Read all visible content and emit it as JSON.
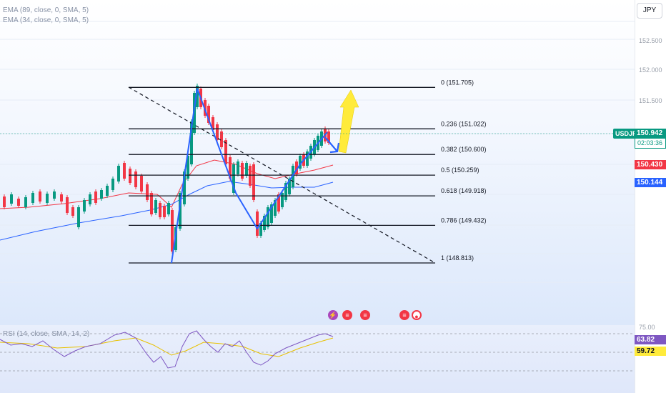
{
  "indicators": {
    "ema_slow": "EMA (89, close, 0, SMA, 5)",
    "ema_fast": "EMA (34, close, 0, SMA, 5)",
    "rsi": "RSI (14, close, SMA, 14, 2)"
  },
  "axis": {
    "currency": "JPY",
    "ticks": [
      "152.500",
      "152.000",
      "151.500"
    ],
    "rsi_ticks": [
      "75.00"
    ]
  },
  "symbol": {
    "name": "USDJPY",
    "last_price": "150.942",
    "countdown": "02:03:36",
    "last_color": "#089981"
  },
  "price_tags": {
    "ema_fast_value": "150.430",
    "ema_fast_color": "#f23645",
    "ema_slow_value": "150.144",
    "ema_slow_color": "#2962ff"
  },
  "rsi_tags": {
    "rsi_value": "63.82",
    "rsi_color": "#7e57c2",
    "signal_value": "59.72",
    "signal_color": "#ffeb3b"
  },
  "fib_levels": [
    {
      "ratio": "0",
      "price": 151.705,
      "label": "0 (151.705)"
    },
    {
      "ratio": "0.236",
      "price": 151.022,
      "label": "0.236 (151.022)"
    },
    {
      "ratio": "0.382",
      "price": 150.6,
      "label": "0.382 (150.600)"
    },
    {
      "ratio": "0.5",
      "price": 150.259,
      "label": "0.5 (150.259)"
    },
    {
      "ratio": "0.618",
      "price": 149.918,
      "label": "0.618 (149.918)"
    },
    {
      "ratio": "0.786",
      "price": 149.432,
      "label": "0.786 (149.432)"
    },
    {
      "ratio": "1",
      "price": 148.813,
      "label": "1 (148.813)"
    }
  ],
  "colors": {
    "bull": "#089981",
    "bear": "#f23645",
    "ema_fast": "#f23645",
    "ema_slow": "#2962ff",
    "rsi": "#7e57c2",
    "rsi_signal": "#e8c100",
    "arrow_up": "#ffeb3b",
    "arrow_down": "#2962ff"
  },
  "events": [
    {
      "icon": "lightning-icon",
      "color": "#ab47bc"
    },
    {
      "icon": "us-flag-icon",
      "color": "#f23645"
    },
    {
      "icon": "us-flag-icon",
      "color": "#f23645"
    },
    {
      "icon": "us-flag-icon",
      "color": "#f23645"
    },
    {
      "icon": "jp-flag-icon",
      "color": "#f23645"
    }
  ]
}
